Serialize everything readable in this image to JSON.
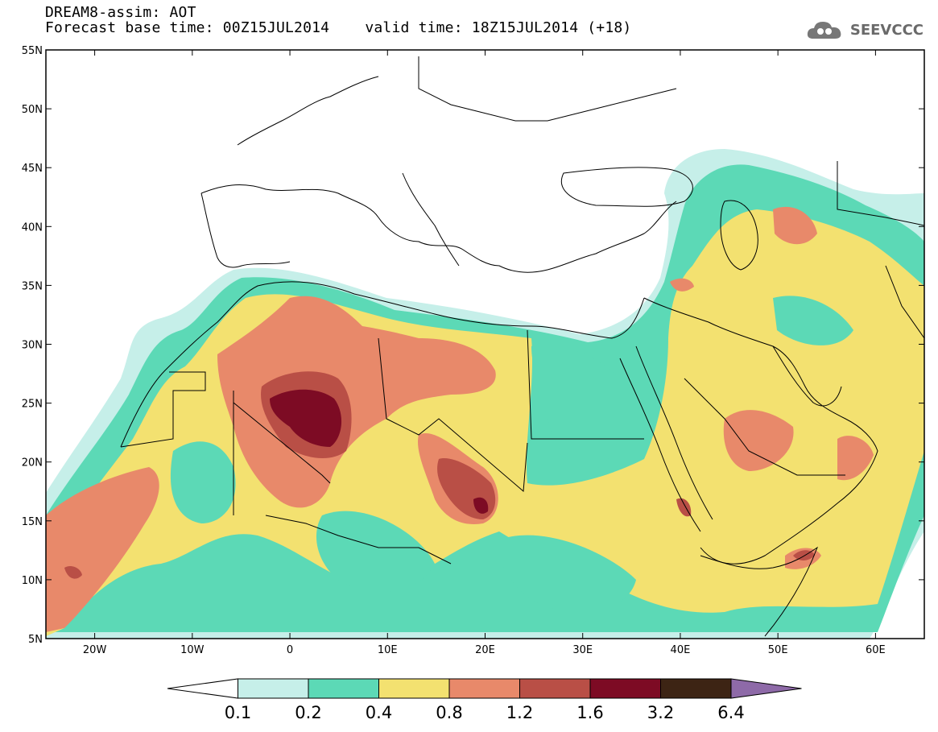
{
  "title": {
    "line1": "DREAM8-assim: AOT",
    "line2_left": "Forecast base time: 00Z15JUL2014",
    "line2_right": "valid time: 18Z15JUL2014 (+18)"
  },
  "logo": {
    "text": "SEEVCCC",
    "icon": "cloud-icon"
  },
  "map": {
    "lon_ticks": [
      "20W",
      "10W",
      "0",
      "10E",
      "20E",
      "30E",
      "40E",
      "50E",
      "60E"
    ],
    "lat_ticks": [
      "55N",
      "50N",
      "45N",
      "40N",
      "35N",
      "30N",
      "25N",
      "20N",
      "15N",
      "10N",
      "5N"
    ],
    "lon_range": [
      -25,
      65
    ],
    "lat_range": [
      5,
      55
    ]
  },
  "colorbar": {
    "labels": [
      "0.1",
      "0.2",
      "0.4",
      "0.8",
      "1.2",
      "1.6",
      "3.2",
      "6.4"
    ],
    "colors": [
      "#c6efe9",
      "#5cd9b6",
      "#f3e170",
      "#e8896a",
      "#b94f46",
      "#7d0b24",
      "#3d2414",
      "#8e6aa8"
    ]
  }
}
